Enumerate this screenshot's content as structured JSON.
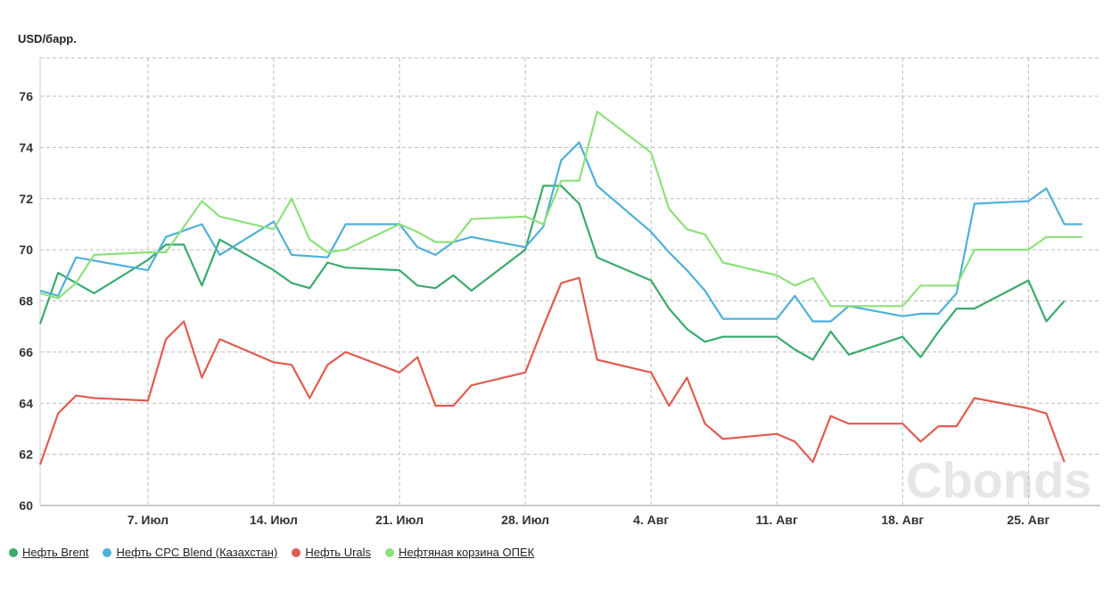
{
  "chart_data": {
    "type": "line",
    "ylabel": "USD/барр.",
    "ylim": [
      60,
      77.5
    ],
    "yticks": [
      60,
      62,
      64,
      66,
      68,
      70,
      72,
      74,
      76
    ],
    "xlim": [
      "2025-07-01",
      "2025-08-29"
    ],
    "xticks": [
      {
        "date": "2025-07-07",
        "label": "7. Июл"
      },
      {
        "date": "2025-07-14",
        "label": "14. Июл"
      },
      {
        "date": "2025-07-21",
        "label": "21. Июл"
      },
      {
        "date": "2025-07-28",
        "label": "28. Июл"
      },
      {
        "date": "2025-08-04",
        "label": "4. Авг"
      },
      {
        "date": "2025-08-11",
        "label": "11. Авг"
      },
      {
        "date": "2025-08-18",
        "label": "18. Авг"
      },
      {
        "date": "2025-08-25",
        "label": "25. Авг"
      }
    ],
    "grid": true,
    "legend_position": "bottom-left",
    "watermark": "Cbonds",
    "series": [
      {
        "name": "Нефть Brent",
        "color": "#3aaa6e",
        "points": [
          [
            "2025-07-01",
            67.1
          ],
          [
            "2025-07-02",
            69.1
          ],
          [
            "2025-07-03",
            68.7
          ],
          [
            "2025-07-04",
            68.3
          ],
          [
            "2025-07-07",
            69.6
          ],
          [
            "2025-07-08",
            70.2
          ],
          [
            "2025-07-09",
            70.2
          ],
          [
            "2025-07-10",
            68.6
          ],
          [
            "2025-07-11",
            70.4
          ],
          [
            "2025-07-14",
            69.2
          ],
          [
            "2025-07-15",
            68.7
          ],
          [
            "2025-07-16",
            68.5
          ],
          [
            "2025-07-17",
            69.5
          ],
          [
            "2025-07-18",
            69.3
          ],
          [
            "2025-07-21",
            69.2
          ],
          [
            "2025-07-22",
            68.6
          ],
          [
            "2025-07-23",
            68.5
          ],
          [
            "2025-07-24",
            69.0
          ],
          [
            "2025-07-25",
            68.4
          ],
          [
            "2025-07-28",
            70.0
          ],
          [
            "2025-07-29",
            72.5
          ],
          [
            "2025-07-30",
            72.5
          ],
          [
            "2025-07-31",
            71.8
          ],
          [
            "2025-08-01",
            69.7
          ],
          [
            "2025-08-04",
            68.8
          ],
          [
            "2025-08-05",
            67.7
          ],
          [
            "2025-08-06",
            66.9
          ],
          [
            "2025-08-07",
            66.4
          ],
          [
            "2025-08-08",
            66.6
          ],
          [
            "2025-08-11",
            66.6
          ],
          [
            "2025-08-12",
            66.1
          ],
          [
            "2025-08-13",
            65.7
          ],
          [
            "2025-08-14",
            66.8
          ],
          [
            "2025-08-15",
            65.9
          ],
          [
            "2025-08-18",
            66.6
          ],
          [
            "2025-08-19",
            65.8
          ],
          [
            "2025-08-20",
            66.8
          ],
          [
            "2025-08-21",
            67.7
          ],
          [
            "2025-08-22",
            67.7
          ],
          [
            "2025-08-25",
            68.8
          ],
          [
            "2025-08-26",
            67.2
          ],
          [
            "2025-08-27",
            68.0
          ]
        ]
      },
      {
        "name": "Нефть CPC Blend (Казахстан)",
        "color": "#4fb0d8",
        "points": [
          [
            "2025-07-01",
            68.4
          ],
          [
            "2025-07-02",
            68.2
          ],
          [
            "2025-07-03",
            69.7
          ],
          [
            "2025-07-07",
            69.2
          ],
          [
            "2025-07-08",
            70.5
          ],
          [
            "2025-07-10",
            71.0
          ],
          [
            "2025-07-11",
            69.8
          ],
          [
            "2025-07-14",
            71.1
          ],
          [
            "2025-07-15",
            69.8
          ],
          [
            "2025-07-17",
            69.7
          ],
          [
            "2025-07-18",
            71.0
          ],
          [
            "2025-07-21",
            71.0
          ],
          [
            "2025-07-22",
            70.1
          ],
          [
            "2025-07-23",
            69.8
          ],
          [
            "2025-07-24",
            70.3
          ],
          [
            "2025-07-25",
            70.5
          ],
          [
            "2025-07-28",
            70.1
          ],
          [
            "2025-07-29",
            70.9
          ],
          [
            "2025-07-30",
            73.5
          ],
          [
            "2025-07-31",
            74.2
          ],
          [
            "2025-08-01",
            72.5
          ],
          [
            "2025-08-04",
            70.7
          ],
          [
            "2025-08-05",
            69.9
          ],
          [
            "2025-08-06",
            69.2
          ],
          [
            "2025-08-07",
            68.4
          ],
          [
            "2025-08-08",
            67.3
          ],
          [
            "2025-08-11",
            67.3
          ],
          [
            "2025-08-12",
            68.2
          ],
          [
            "2025-08-13",
            67.2
          ],
          [
            "2025-08-14",
            67.2
          ],
          [
            "2025-08-15",
            67.8
          ],
          [
            "2025-08-18",
            67.4
          ],
          [
            "2025-08-19",
            67.5
          ],
          [
            "2025-08-20",
            67.5
          ],
          [
            "2025-08-21",
            68.3
          ],
          [
            "2025-08-22",
            71.8
          ],
          [
            "2025-08-25",
            71.9
          ],
          [
            "2025-08-26",
            72.4
          ],
          [
            "2025-08-27",
            71.0
          ],
          [
            "2025-08-28",
            71.0
          ]
        ]
      },
      {
        "name": "Нефть Urals",
        "color": "#e05c50",
        "points": [
          [
            "2025-07-01",
            61.6
          ],
          [
            "2025-07-02",
            63.6
          ],
          [
            "2025-07-03",
            64.3
          ],
          [
            "2025-07-04",
            64.2
          ],
          [
            "2025-07-07",
            64.1
          ],
          [
            "2025-07-08",
            66.5
          ],
          [
            "2025-07-09",
            67.2
          ],
          [
            "2025-07-10",
            65.0
          ],
          [
            "2025-07-11",
            66.5
          ],
          [
            "2025-07-14",
            65.6
          ],
          [
            "2025-07-15",
            65.5
          ],
          [
            "2025-07-16",
            64.2
          ],
          [
            "2025-07-17",
            65.5
          ],
          [
            "2025-07-18",
            66.0
          ],
          [
            "2025-07-21",
            65.2
          ],
          [
            "2025-07-22",
            65.8
          ],
          [
            "2025-07-23",
            63.9
          ],
          [
            "2025-07-24",
            63.9
          ],
          [
            "2025-07-25",
            64.7
          ],
          [
            "2025-07-28",
            65.2
          ],
          [
            "2025-07-29",
            67.0
          ],
          [
            "2025-07-30",
            68.7
          ],
          [
            "2025-07-31",
            68.9
          ],
          [
            "2025-08-01",
            65.7
          ],
          [
            "2025-08-04",
            65.2
          ],
          [
            "2025-08-05",
            63.9
          ],
          [
            "2025-08-06",
            65.0
          ],
          [
            "2025-08-07",
            63.2
          ],
          [
            "2025-08-08",
            62.6
          ],
          [
            "2025-08-11",
            62.8
          ],
          [
            "2025-08-12",
            62.5
          ],
          [
            "2025-08-13",
            61.7
          ],
          [
            "2025-08-14",
            63.5
          ],
          [
            "2025-08-15",
            63.2
          ],
          [
            "2025-08-18",
            63.2
          ],
          [
            "2025-08-19",
            62.5
          ],
          [
            "2025-08-20",
            63.1
          ],
          [
            "2025-08-21",
            63.1
          ],
          [
            "2025-08-22",
            64.2
          ],
          [
            "2025-08-25",
            63.8
          ],
          [
            "2025-08-26",
            63.6
          ],
          [
            "2025-08-27",
            61.7
          ]
        ]
      },
      {
        "name": "Нефтяная корзина ОПЕК",
        "color": "#8ee07a",
        "points": [
          [
            "2025-07-01",
            68.3
          ],
          [
            "2025-07-02",
            68.1
          ],
          [
            "2025-07-03",
            68.7
          ],
          [
            "2025-07-04",
            69.8
          ],
          [
            "2025-07-07",
            69.9
          ],
          [
            "2025-07-08",
            69.9
          ],
          [
            "2025-07-10",
            71.9
          ],
          [
            "2025-07-11",
            71.3
          ],
          [
            "2025-07-14",
            70.8
          ],
          [
            "2025-07-15",
            72.0
          ],
          [
            "2025-07-16",
            70.4
          ],
          [
            "2025-07-17",
            69.9
          ],
          [
            "2025-07-18",
            70.0
          ],
          [
            "2025-07-21",
            71.0
          ],
          [
            "2025-07-22",
            70.7
          ],
          [
            "2025-07-23",
            70.3
          ],
          [
            "2025-07-24",
            70.3
          ],
          [
            "2025-07-25",
            71.2
          ],
          [
            "2025-07-28",
            71.3
          ],
          [
            "2025-07-29",
            71.0
          ],
          [
            "2025-07-30",
            72.7
          ],
          [
            "2025-07-31",
            72.7
          ],
          [
            "2025-08-01",
            75.4
          ],
          [
            "2025-08-04",
            73.8
          ],
          [
            "2025-08-05",
            71.6
          ],
          [
            "2025-08-06",
            70.8
          ],
          [
            "2025-08-07",
            70.6
          ],
          [
            "2025-08-08",
            69.5
          ],
          [
            "2025-08-11",
            69.0
          ],
          [
            "2025-08-12",
            68.6
          ],
          [
            "2025-08-13",
            68.9
          ],
          [
            "2025-08-14",
            67.8
          ],
          [
            "2025-08-15",
            67.8
          ],
          [
            "2025-08-18",
            67.8
          ],
          [
            "2025-08-19",
            68.6
          ],
          [
            "2025-08-20",
            68.6
          ],
          [
            "2025-08-21",
            68.6
          ],
          [
            "2025-08-22",
            70.0
          ],
          [
            "2025-08-25",
            70.0
          ],
          [
            "2025-08-26",
            70.5
          ],
          [
            "2025-08-27",
            70.5
          ],
          [
            "2025-08-28",
            70.5
          ]
        ]
      }
    ]
  }
}
